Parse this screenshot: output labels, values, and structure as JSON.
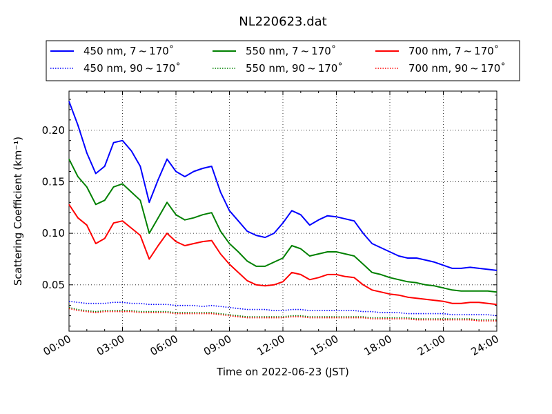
{
  "chart_data": {
    "type": "line",
    "title": "NL220623.dat",
    "xlabel": "Time on 2022-06-23 (JST)",
    "ylabel": "Scattering Coefficient (km⁻¹)",
    "xlim": [
      0,
      24
    ],
    "ylim": [
      0.005,
      0.238
    ],
    "x_ticks": [
      "00:00",
      "03:00",
      "06:00",
      "09:00",
      "12:00",
      "15:00",
      "18:00",
      "21:00",
      "24:00"
    ],
    "y_ticks": [
      "0.05",
      "0.10",
      "0.15",
      "0.20"
    ],
    "grid": true,
    "legend_placement": "top, above plot",
    "x": [
      0,
      0.5,
      1,
      1.5,
      2,
      2.5,
      3,
      3.5,
      4,
      4.5,
      5,
      5.5,
      6,
      6.5,
      7,
      7.5,
      8,
      8.5,
      9,
      9.5,
      10,
      10.5,
      11,
      11.5,
      12,
      12.5,
      13,
      13.5,
      14,
      14.5,
      15,
      15.5,
      16,
      16.5,
      17,
      17.5,
      18,
      18.5,
      19,
      19.5,
      20,
      20.5,
      21,
      21.5,
      22,
      22.5,
      23,
      23.5,
      24
    ],
    "series": [
      {
        "name": "450 nm, 7 ~ 170˚",
        "color": "#0000ff",
        "style": "solid",
        "values": [
          0.228,
          0.205,
          0.178,
          0.158,
          0.165,
          0.188,
          0.19,
          0.18,
          0.165,
          0.13,
          0.152,
          0.172,
          0.16,
          0.155,
          0.16,
          0.163,
          0.165,
          0.14,
          0.122,
          0.112,
          0.102,
          0.098,
          0.096,
          0.1,
          0.11,
          0.122,
          0.118,
          0.108,
          0.113,
          0.117,
          0.116,
          0.114,
          0.112,
          0.1,
          0.09,
          0.086,
          0.082,
          0.078,
          0.076,
          0.076,
          0.074,
          0.072,
          0.069,
          0.066,
          0.066,
          0.067,
          0.066,
          0.065,
          0.064
        ]
      },
      {
        "name": "450 nm, 90 ~ 170˚",
        "color": "#0000ff",
        "style": "dotted",
        "values": [
          0.034,
          0.033,
          0.032,
          0.032,
          0.032,
          0.033,
          0.033,
          0.032,
          0.032,
          0.031,
          0.031,
          0.031,
          0.03,
          0.03,
          0.03,
          0.029,
          0.03,
          0.029,
          0.028,
          0.027,
          0.026,
          0.026,
          0.026,
          0.025,
          0.025,
          0.026,
          0.026,
          0.025,
          0.025,
          0.025,
          0.025,
          0.025,
          0.025,
          0.024,
          0.024,
          0.023,
          0.023,
          0.023,
          0.022,
          0.022,
          0.022,
          0.022,
          0.022,
          0.021,
          0.021,
          0.021,
          0.021,
          0.021,
          0.02
        ]
      },
      {
        "name": "550 nm, 7 ~ 170˚",
        "color": "#008000",
        "style": "solid",
        "values": [
          0.172,
          0.155,
          0.145,
          0.128,
          0.132,
          0.145,
          0.148,
          0.14,
          0.132,
          0.1,
          0.115,
          0.13,
          0.118,
          0.113,
          0.115,
          0.118,
          0.12,
          0.102,
          0.09,
          0.082,
          0.073,
          0.068,
          0.068,
          0.072,
          0.076,
          0.088,
          0.085,
          0.078,
          0.08,
          0.082,
          0.082,
          0.08,
          0.078,
          0.07,
          0.062,
          0.06,
          0.057,
          0.055,
          0.053,
          0.052,
          0.05,
          0.049,
          0.047,
          0.045,
          0.044,
          0.044,
          0.044,
          0.044,
          0.043
        ]
      },
      {
        "name": "550 nm, 90 ~ 170˚",
        "color": "#008000",
        "style": "dotted",
        "values": [
          0.028,
          0.026,
          0.025,
          0.024,
          0.025,
          0.025,
          0.025,
          0.025,
          0.024,
          0.024,
          0.024,
          0.024,
          0.023,
          0.023,
          0.023,
          0.023,
          0.023,
          0.022,
          0.021,
          0.02,
          0.019,
          0.019,
          0.019,
          0.019,
          0.019,
          0.02,
          0.02,
          0.019,
          0.019,
          0.019,
          0.019,
          0.019,
          0.019,
          0.019,
          0.018,
          0.018,
          0.018,
          0.018,
          0.018,
          0.017,
          0.017,
          0.017,
          0.017,
          0.017,
          0.017,
          0.017,
          0.016,
          0.016,
          0.016
        ]
      },
      {
        "name": "700 nm, 7 ~ 170˚",
        "color": "#ff0000",
        "style": "solid",
        "values": [
          0.128,
          0.115,
          0.108,
          0.09,
          0.095,
          0.11,
          0.112,
          0.105,
          0.098,
          0.075,
          0.088,
          0.1,
          0.092,
          0.088,
          0.09,
          0.092,
          0.093,
          0.08,
          0.07,
          0.062,
          0.054,
          0.05,
          0.049,
          0.05,
          0.053,
          0.062,
          0.06,
          0.055,
          0.057,
          0.06,
          0.06,
          0.058,
          0.057,
          0.05,
          0.045,
          0.043,
          0.041,
          0.04,
          0.038,
          0.037,
          0.036,
          0.035,
          0.034,
          0.032,
          0.032,
          0.033,
          0.033,
          0.032,
          0.031
        ]
      },
      {
        "name": "700 nm, 90 ~ 170˚",
        "color": "#ff0000",
        "style": "dotted",
        "values": [
          0.027,
          0.025,
          0.024,
          0.023,
          0.024,
          0.024,
          0.024,
          0.024,
          0.023,
          0.023,
          0.023,
          0.023,
          0.022,
          0.022,
          0.022,
          0.022,
          0.022,
          0.021,
          0.02,
          0.019,
          0.018,
          0.018,
          0.018,
          0.018,
          0.018,
          0.019,
          0.019,
          0.018,
          0.018,
          0.018,
          0.018,
          0.018,
          0.018,
          0.018,
          0.017,
          0.017,
          0.017,
          0.017,
          0.017,
          0.016,
          0.016,
          0.016,
          0.016,
          0.016,
          0.016,
          0.016,
          0.015,
          0.015,
          0.015
        ]
      }
    ]
  }
}
